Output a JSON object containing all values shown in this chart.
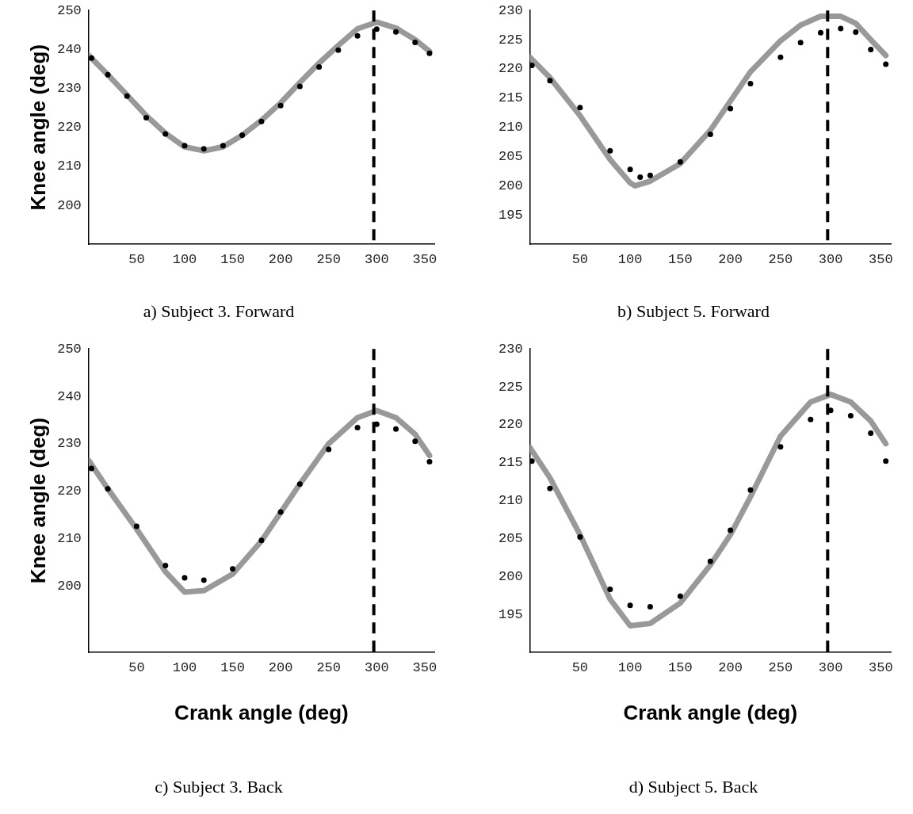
{
  "chart_data": [
    {
      "type": "line",
      "title": "a) Subject 3. Forward",
      "ylabel": "Knee angle (deg)",
      "xlim": [
        0,
        360
      ],
      "xticks": [
        50,
        100,
        150,
        200,
        250,
        300,
        350
      ],
      "ylim": [
        190,
        250
      ],
      "yticks": [
        200,
        210,
        220,
        230,
        240,
        250
      ],
      "series": [
        {
          "color": "#999999",
          "marker": "none",
          "line_style": "solid",
          "x": [
            0,
            20,
            40,
            60,
            80,
            100,
            120,
            140,
            160,
            180,
            200,
            220,
            240,
            260,
            280,
            300,
            320,
            340,
            355
          ],
          "values": [
            238.5,
            233.5,
            228.3,
            223,
            218.5,
            215,
            214,
            215,
            218,
            221.8,
            226.3,
            231.5,
            236.5,
            241,
            245.3,
            247,
            245.5,
            242.5,
            239.5
          ]
        },
        {
          "type": "scatter",
          "color": "#000000",
          "marker": "circle",
          "x": [
            3,
            20,
            40,
            60,
            80,
            100,
            120,
            140,
            160,
            180,
            200,
            220,
            240,
            260,
            280,
            300,
            320,
            340,
            355
          ],
          "values": [
            237.8,
            233.5,
            228,
            222.5,
            218.3,
            215.3,
            214.5,
            215.3,
            218,
            221.5,
            225.6,
            230.5,
            235.5,
            239.8,
            243.5,
            245.2,
            244.5,
            241.8,
            239
          ]
        }
      ],
      "ref_lines": [
        {
          "axis": "x",
          "value": 297,
          "color": "#000000",
          "line_style": "dashed"
        }
      ]
    },
    {
      "type": "line",
      "title": "b) Subject 5. Forward",
      "xlim": [
        0,
        360
      ],
      "xticks": [
        50,
        100,
        150,
        200,
        250,
        300,
        350
      ],
      "ylim": [
        190,
        230
      ],
      "yticks": [
        195,
        200,
        205,
        210,
        215,
        220,
        225,
        230
      ],
      "series": [
        {
          "color": "#999999",
          "marker": "none",
          "line_style": "solid",
          "x": [
            0,
            20,
            50,
            80,
            100,
            105,
            120,
            150,
            180,
            200,
            220,
            250,
            270,
            290,
            310,
            325,
            340,
            355
          ],
          "values": [
            222,
            218.5,
            212,
            204.5,
            200.5,
            200,
            200.8,
            203.8,
            209.5,
            214.5,
            219.5,
            224.8,
            227.5,
            229,
            229,
            227.8,
            225,
            222.3
          ]
        },
        {
          "type": "scatter",
          "color": "#000000",
          "marker": "circle",
          "x": [
            2,
            20,
            50,
            80,
            100,
            110,
            120,
            150,
            180,
            200,
            220,
            250,
            270,
            290,
            310,
            325,
            340,
            355
          ],
          "values": [
            220.6,
            218,
            213.4,
            206,
            202.8,
            201.5,
            201.8,
            204.1,
            208.8,
            213.2,
            217.5,
            222,
            224.5,
            226.2,
            226.9,
            226.3,
            223.3,
            220.8
          ]
        }
      ],
      "ref_lines": [
        {
          "axis": "x",
          "value": 297,
          "color": "#000000",
          "line_style": "dashed"
        }
      ]
    },
    {
      "type": "line",
      "title": "c) Subject 3. Back",
      "xlabel": "Crank angle (deg)",
      "ylabel": "Knee angle (deg)",
      "xlim": [
        0,
        360
      ],
      "xticks": [
        50,
        100,
        150,
        200,
        250,
        300,
        350
      ],
      "ylim": [
        186,
        250
      ],
      "yticks": [
        200,
        210,
        220,
        230,
        240,
        250
      ],
      "series": [
        {
          "color": "#999999",
          "marker": "none",
          "line_style": "solid",
          "x": [
            0,
            20,
            50,
            80,
            100,
            120,
            150,
            180,
            200,
            220,
            250,
            280,
            300,
            320,
            340,
            355
          ],
          "values": [
            226.5,
            220.5,
            212,
            203,
            198.7,
            199,
            202.5,
            209.5,
            215.5,
            221.5,
            230,
            235.5,
            237,
            235.5,
            232,
            227.5
          ]
        },
        {
          "type": "scatter",
          "color": "#000000",
          "marker": "circle",
          "x": [
            3,
            20,
            50,
            80,
            100,
            120,
            150,
            180,
            200,
            220,
            250,
            280,
            300,
            320,
            340,
            355
          ],
          "values": [
            224.8,
            220.5,
            212.6,
            204.3,
            201.7,
            201.2,
            203.6,
            209.6,
            215.6,
            221.5,
            228.8,
            233.4,
            234.1,
            233.1,
            230.5,
            226.2
          ]
        }
      ],
      "ref_lines": [
        {
          "axis": "x",
          "value": 297,
          "color": "#000000",
          "line_style": "dashed"
        }
      ]
    },
    {
      "type": "line",
      "title": "d) Subject 5. Back",
      "xlabel": "Crank angle (deg)",
      "xlim": [
        0,
        360
      ],
      "xticks": [
        50,
        100,
        150,
        200,
        250,
        300,
        350
      ],
      "ylim": [
        190,
        230
      ],
      "yticks": [
        195,
        200,
        205,
        210,
        215,
        220,
        225,
        230
      ],
      "series": [
        {
          "color": "#999999",
          "marker": "none",
          "line_style": "solid",
          "x": [
            0,
            20,
            50,
            80,
            100,
            120,
            150,
            180,
            200,
            220,
            250,
            280,
            300,
            320,
            340,
            355
          ],
          "values": [
            217,
            213,
            205.5,
            197,
            193.5,
            193.8,
            196.5,
            201.5,
            205.5,
            210.5,
            218.5,
            223,
            224,
            223,
            220.5,
            217.5
          ]
        },
        {
          "type": "scatter",
          "color": "#000000",
          "marker": "circle",
          "x": [
            2,
            20,
            50,
            80,
            100,
            120,
            150,
            180,
            200,
            220,
            250,
            280,
            300,
            320,
            340,
            355
          ],
          "values": [
            215.2,
            211.6,
            205.2,
            198.3,
            196.2,
            196,
            197.4,
            202,
            206.1,
            211.4,
            217.1,
            220.7,
            221.9,
            221.2,
            218.9,
            215.2
          ]
        }
      ],
      "ref_lines": [
        {
          "axis": "x",
          "value": 297,
          "color": "#000000",
          "line_style": "dashed"
        }
      ]
    }
  ]
}
